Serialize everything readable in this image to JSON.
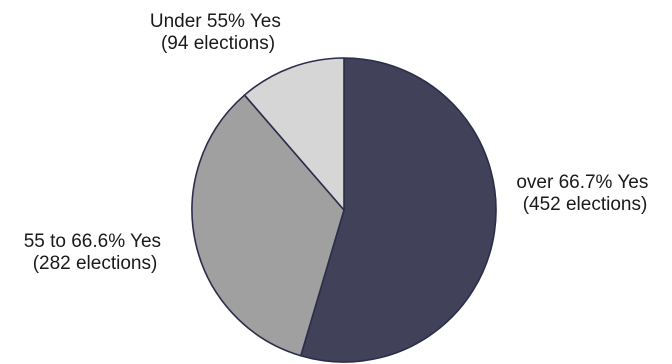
{
  "chart_data": {
    "type": "pie",
    "title": "",
    "start_angle_deg": 0,
    "direction": "clockwise",
    "slices": [
      {
        "label": "over 66.7% Yes",
        "count_label": "(452 elections)",
        "value": 452,
        "color": "#41425a"
      },
      {
        "label": "55 to 66.6% Yes",
        "count_label": "(282 elections)",
        "value": 282,
        "color": "#a0a0a0"
      },
      {
        "label": "Under 55% Yes",
        "count_label": "(94 elections)",
        "value": 94,
        "color": "#d6d6d6"
      }
    ]
  }
}
